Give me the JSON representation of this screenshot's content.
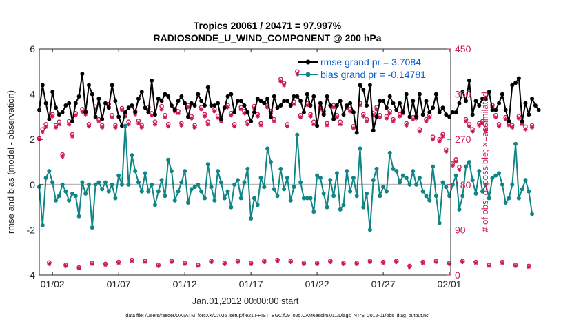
{
  "colors": {
    "rmse": "#000000",
    "bias": "#108585",
    "obs": "#cc1a55",
    "legend_text": "#0a5bd6",
    "zero_line": "#b8b8b8"
  },
  "chart_data": {
    "type": "line",
    "title": "Tropics 20061 / 20471 = 97.997%",
    "subtitle": "RADIOSONDE_U_WIND_COMPONENT @ 200 hPa",
    "xlabel": "Jan.01,2012 00:00:00 start",
    "ylabel": "rmse and bias (model - observation)",
    "ylabel_right": "# of obs: o=possible; ×=assimilated",
    "footer": "data file: /Users/raeder/DAI/ATM_forcXX/CAM6_setup/f.e21.FHIST_BGC.f09_025.CAM6assim.011/Diags_NTrS_2012-01/obs_diag_output.nc",
    "xlim": [
      0.25,
      31.35
    ],
    "ylim": [
      -4,
      6
    ],
    "ylim_right": [
      0,
      450
    ],
    "x_ticks": [
      1.25,
      6.25,
      11.25,
      16.25,
      21.25,
      26.25,
      31.25
    ],
    "x_tick_labels": [
      "01/02",
      "01/07",
      "01/12",
      "01/17",
      "01/22",
      "01/27",
      "02/01"
    ],
    "y_ticks": [
      -4,
      -2,
      0,
      2,
      4,
      6
    ],
    "y_tick_labels": [
      "-4",
      "-2",
      "0",
      "2",
      "4",
      "6"
    ],
    "y_ticks_right": [
      0,
      90,
      180,
      270,
      360,
      450
    ],
    "y_tick_labels_right": [
      "0",
      "90",
      "180",
      "270",
      "360",
      "450"
    ],
    "legend_position": "top-right",
    "x_start": 0.25,
    "x_step": 0.25,
    "series": [
      {
        "name": "rmse grand pr = 3.7084",
        "axis": "left",
        "values": [
          3.3,
          4.4,
          3.6,
          2.9,
          4.1,
          3.4,
          3.1,
          3.2,
          3.5,
          3.6,
          2.8,
          3.6,
          3.9,
          4.9,
          3.2,
          4.4,
          4.0,
          3.0,
          3.8,
          2.9,
          3.6,
          3.4,
          4.4,
          3.7,
          3.0,
          2.6,
          3.2,
          3.4,
          3.5,
          3.2,
          3.8,
          4.1,
          3.4,
          3.2,
          4.6,
          3.1,
          3.8,
          3.7,
          4.0,
          3.9,
          3.5,
          3.3,
          3.7,
          3.9,
          3.6,
          3.0,
          3.6,
          3.5,
          4.0,
          3.7,
          3.5,
          4.3,
          3.5,
          3.5,
          3.6,
          2.9,
          3.4,
          3.9,
          4.0,
          3.2,
          3.7,
          3.7,
          3.5,
          3.2,
          2.8,
          3.2,
          3.8,
          3.7,
          3.6,
          3.8,
          3.0,
          3.9,
          3.4,
          3.5,
          3.7,
          3.7,
          3.5,
          3.9,
          3.9,
          3.7,
          3.2,
          4.0,
          3.5,
          3.9,
          2.6,
          3.6,
          3.1,
          3.9,
          3.5,
          2.9,
          3.5,
          3.7,
          3.1,
          3.5,
          3.6,
          3.2,
          2.3,
          4.4,
          4.2,
          3.5,
          4.4,
          2.4,
          3.0,
          3.7,
          3.7,
          3.4,
          3.9,
          3.6,
          3.3,
          3.6,
          3.2,
          4.0,
          3.0,
          3.7,
          3.0,
          4.0,
          3.1,
          3.7,
          3.2,
          3.4,
          4.0,
          3.2,
          3.4,
          3.1,
          3.0,
          3.2,
          3.2,
          3.6,
          4.1,
          3.7,
          4.6,
          3.1,
          3.7,
          3.5,
          3.8,
          3.8,
          4.1,
          3.3,
          3.3,
          3.6,
          4.0,
          3.3,
          2.8,
          4.4,
          4.5,
          4.7,
          2.8,
          3.6,
          3.1,
          3.8,
          3.5,
          3.3
        ],
        "color": "#000000"
      },
      {
        "name": "bias grand pr = -0.14781",
        "axis": "left",
        "values": [
          -0.1,
          -1.8,
          0.3,
          0.6,
          0.1,
          -0.7,
          -0.5,
          0.0,
          -0.3,
          -0.7,
          -0.4,
          -0.5,
          -1.4,
          0.1,
          -0.4,
          0.0,
          -1.9,
          0.0,
          0.1,
          -0.2,
          0.1,
          -0.3,
          0.0,
          -0.6,
          0.4,
          0.0,
          2.6,
          0.0,
          1.3,
          0.6,
          0.1,
          -0.3,
          0.5,
          -0.3,
          0.0,
          -0.9,
          -0.3,
          0.2,
          -0.5,
          1.1,
          0.6,
          -0.7,
          -0.3,
          0.1,
          0.6,
          -0.8,
          -0.2,
          -0.1,
          0.0,
          -0.3,
          -0.6,
          0.9,
          -0.1,
          -0.7,
          0.6,
          0.1,
          -0.6,
          -0.3,
          -1.0,
          0.0,
          0.2,
          -0.6,
          0.1,
          0.7,
          -1.5,
          -0.6,
          -0.9,
          0.3,
          -0.1,
          1.6,
          1.0,
          -0.2,
          -0.5,
          0.7,
          -0.2,
          0.3,
          -0.7,
          -0.1,
          2.2,
          0.1,
          -0.6,
          -0.6,
          -0.6,
          -1.2,
          0.4,
          0.3,
          -0.4,
          -1.0,
          0.2,
          -0.5,
          0.5,
          -1.1,
          -0.9,
          0.6,
          -0.3,
          0.3,
          -0.5,
          1.6,
          -1.0,
          -0.4,
          -2.0,
          0.2,
          0.7,
          -0.5,
          -0.1,
          -0.3,
          1.4,
          0.7,
          0.6,
          0.1,
          0.4,
          0.3,
          0.0,
          0.6,
          0.0,
          0.3,
          -0.3,
          -0.5,
          -0.7,
          0.8,
          -0.5,
          -1.7,
          0.1,
          -0.1,
          -0.5,
          0.0,
          0.4,
          -1.1,
          -0.5,
          0.8,
          1.0,
          0.2,
          -0.4,
          0.6,
          -0.3,
          0.0,
          -0.6,
          0.3,
          0.4,
          0.5,
          0.0,
          -0.8,
          -0.6,
          0.0,
          1.8,
          -0.6,
          -0.2,
          0.2,
          -0.3,
          -1.3
        ],
        "color": "#108585"
      },
      {
        "name": "obs possible",
        "axis": "right",
        "marker": "o",
        "values": [
          272,
          290,
          300,
          25,
          320,
          298,
          305,
          240,
          20,
          306,
          280,
          322,
          15,
          330,
          325,
          300,
          24,
          335,
          310,
          298,
          22,
          340,
          318,
          298,
          26,
          332,
          320,
          305,
          30,
          325,
          307,
          298,
          28,
          334,
          322,
          305,
          20,
          336,
          318,
          300,
          28,
          330,
          326,
          302,
          24,
          338,
          316,
          298,
          20,
          334,
          320,
          305,
          28,
          330,
          317,
          310,
          24,
          338,
          322,
          300,
          28,
          334,
          326,
          305,
          24,
          336,
          320,
          302,
          28,
          338,
          326,
          310,
          30,
          390,
          382,
          300,
          28,
          345,
          405,
          318,
          24,
          342,
          320,
          305,
          24,
          334,
          326,
          302,
          28,
          338,
          318,
          305,
          24,
          336,
          330,
          296,
          24,
          342,
          320,
          310,
          28,
          322,
          334,
          318,
          26,
          316,
          326,
          310,
          28,
          320,
          326,
          302,
          18,
          314,
          316,
          290,
          26,
          310,
          318,
          275,
          28,
          270,
          280,
          250,
          24,
          222,
          230,
          215,
          28,
          310,
          300,
          290,
          26,
          302,
          306,
          292,
          20,
          338,
          318,
          300,
          26,
          314,
          302,
          298,
          20,
          316,
          304,
          295,
          18,
          298
        ],
        "color": "#cc1a55"
      },
      {
        "name": "obs assimilated",
        "axis": "right",
        "marker": "*",
        "values": [
          270,
          285,
          295,
          22,
          316,
          294,
          300,
          236,
          18,
          300,
          276,
          318,
          14,
          325,
          320,
          296,
          22,
          330,
          306,
          294,
          20,
          335,
          314,
          294,
          24,
          328,
          316,
          300,
          28,
          320,
          302,
          294,
          26,
          330,
          318,
          300,
          18,
          330,
          314,
          296,
          26,
          326,
          322,
          298,
          22,
          334,
          312,
          294,
          18,
          330,
          316,
          300,
          26,
          326,
          313,
          306,
          22,
          334,
          318,
          296,
          26,
          330,
          322,
          300,
          22,
          332,
          316,
          298,
          26,
          334,
          322,
          306,
          28,
          385,
          378,
          296,
          26,
          340,
          400,
          314,
          22,
          338,
          316,
          300,
          22,
          330,
          322,
          298,
          26,
          334,
          314,
          300,
          22,
          332,
          326,
          292,
          22,
          338,
          316,
          306,
          26,
          318,
          330,
          314,
          24,
          312,
          322,
          306,
          26,
          316,
          322,
          298,
          16,
          310,
          312,
          286,
          24,
          306,
          314,
          270,
          26,
          266,
          276,
          246,
          22,
          218,
          226,
          210,
          26,
          306,
          296,
          286,
          24,
          298,
          302,
          288,
          18,
          334,
          314,
          296,
          24,
          310,
          298,
          294,
          18,
          312,
          300,
          290,
          16,
          294
        ],
        "color": "#cc1a55"
      }
    ]
  }
}
